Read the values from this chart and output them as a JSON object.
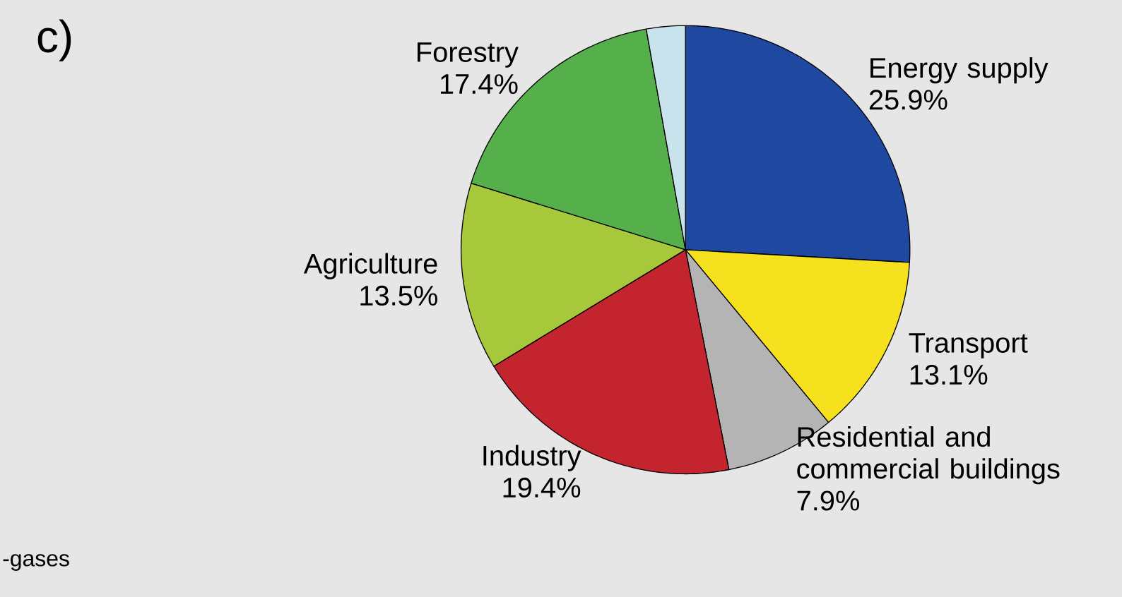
{
  "chart_data": {
    "type": "pie",
    "title": "c)",
    "categories": [
      "Energy supply",
      "Transport",
      "Residential and commercial buildings",
      "Industry",
      "Agriculture",
      "Forestry",
      null
    ],
    "values": [
      25.9,
      13.1,
      7.9,
      19.4,
      13.5,
      17.4,
      2.8
    ],
    "value_labels": [
      "25.9%",
      "13.1%",
      "7.9%",
      "19.4%",
      "13.5%",
      "17.4%",
      null
    ],
    "colors": [
      "#1f48a0",
      "#f6e11e",
      "#b4b4b4",
      "#c3242d",
      "#a8c83b",
      "#55b04b",
      "#c8e3ec"
    ],
    "annotations": [
      "-gases"
    ]
  }
}
